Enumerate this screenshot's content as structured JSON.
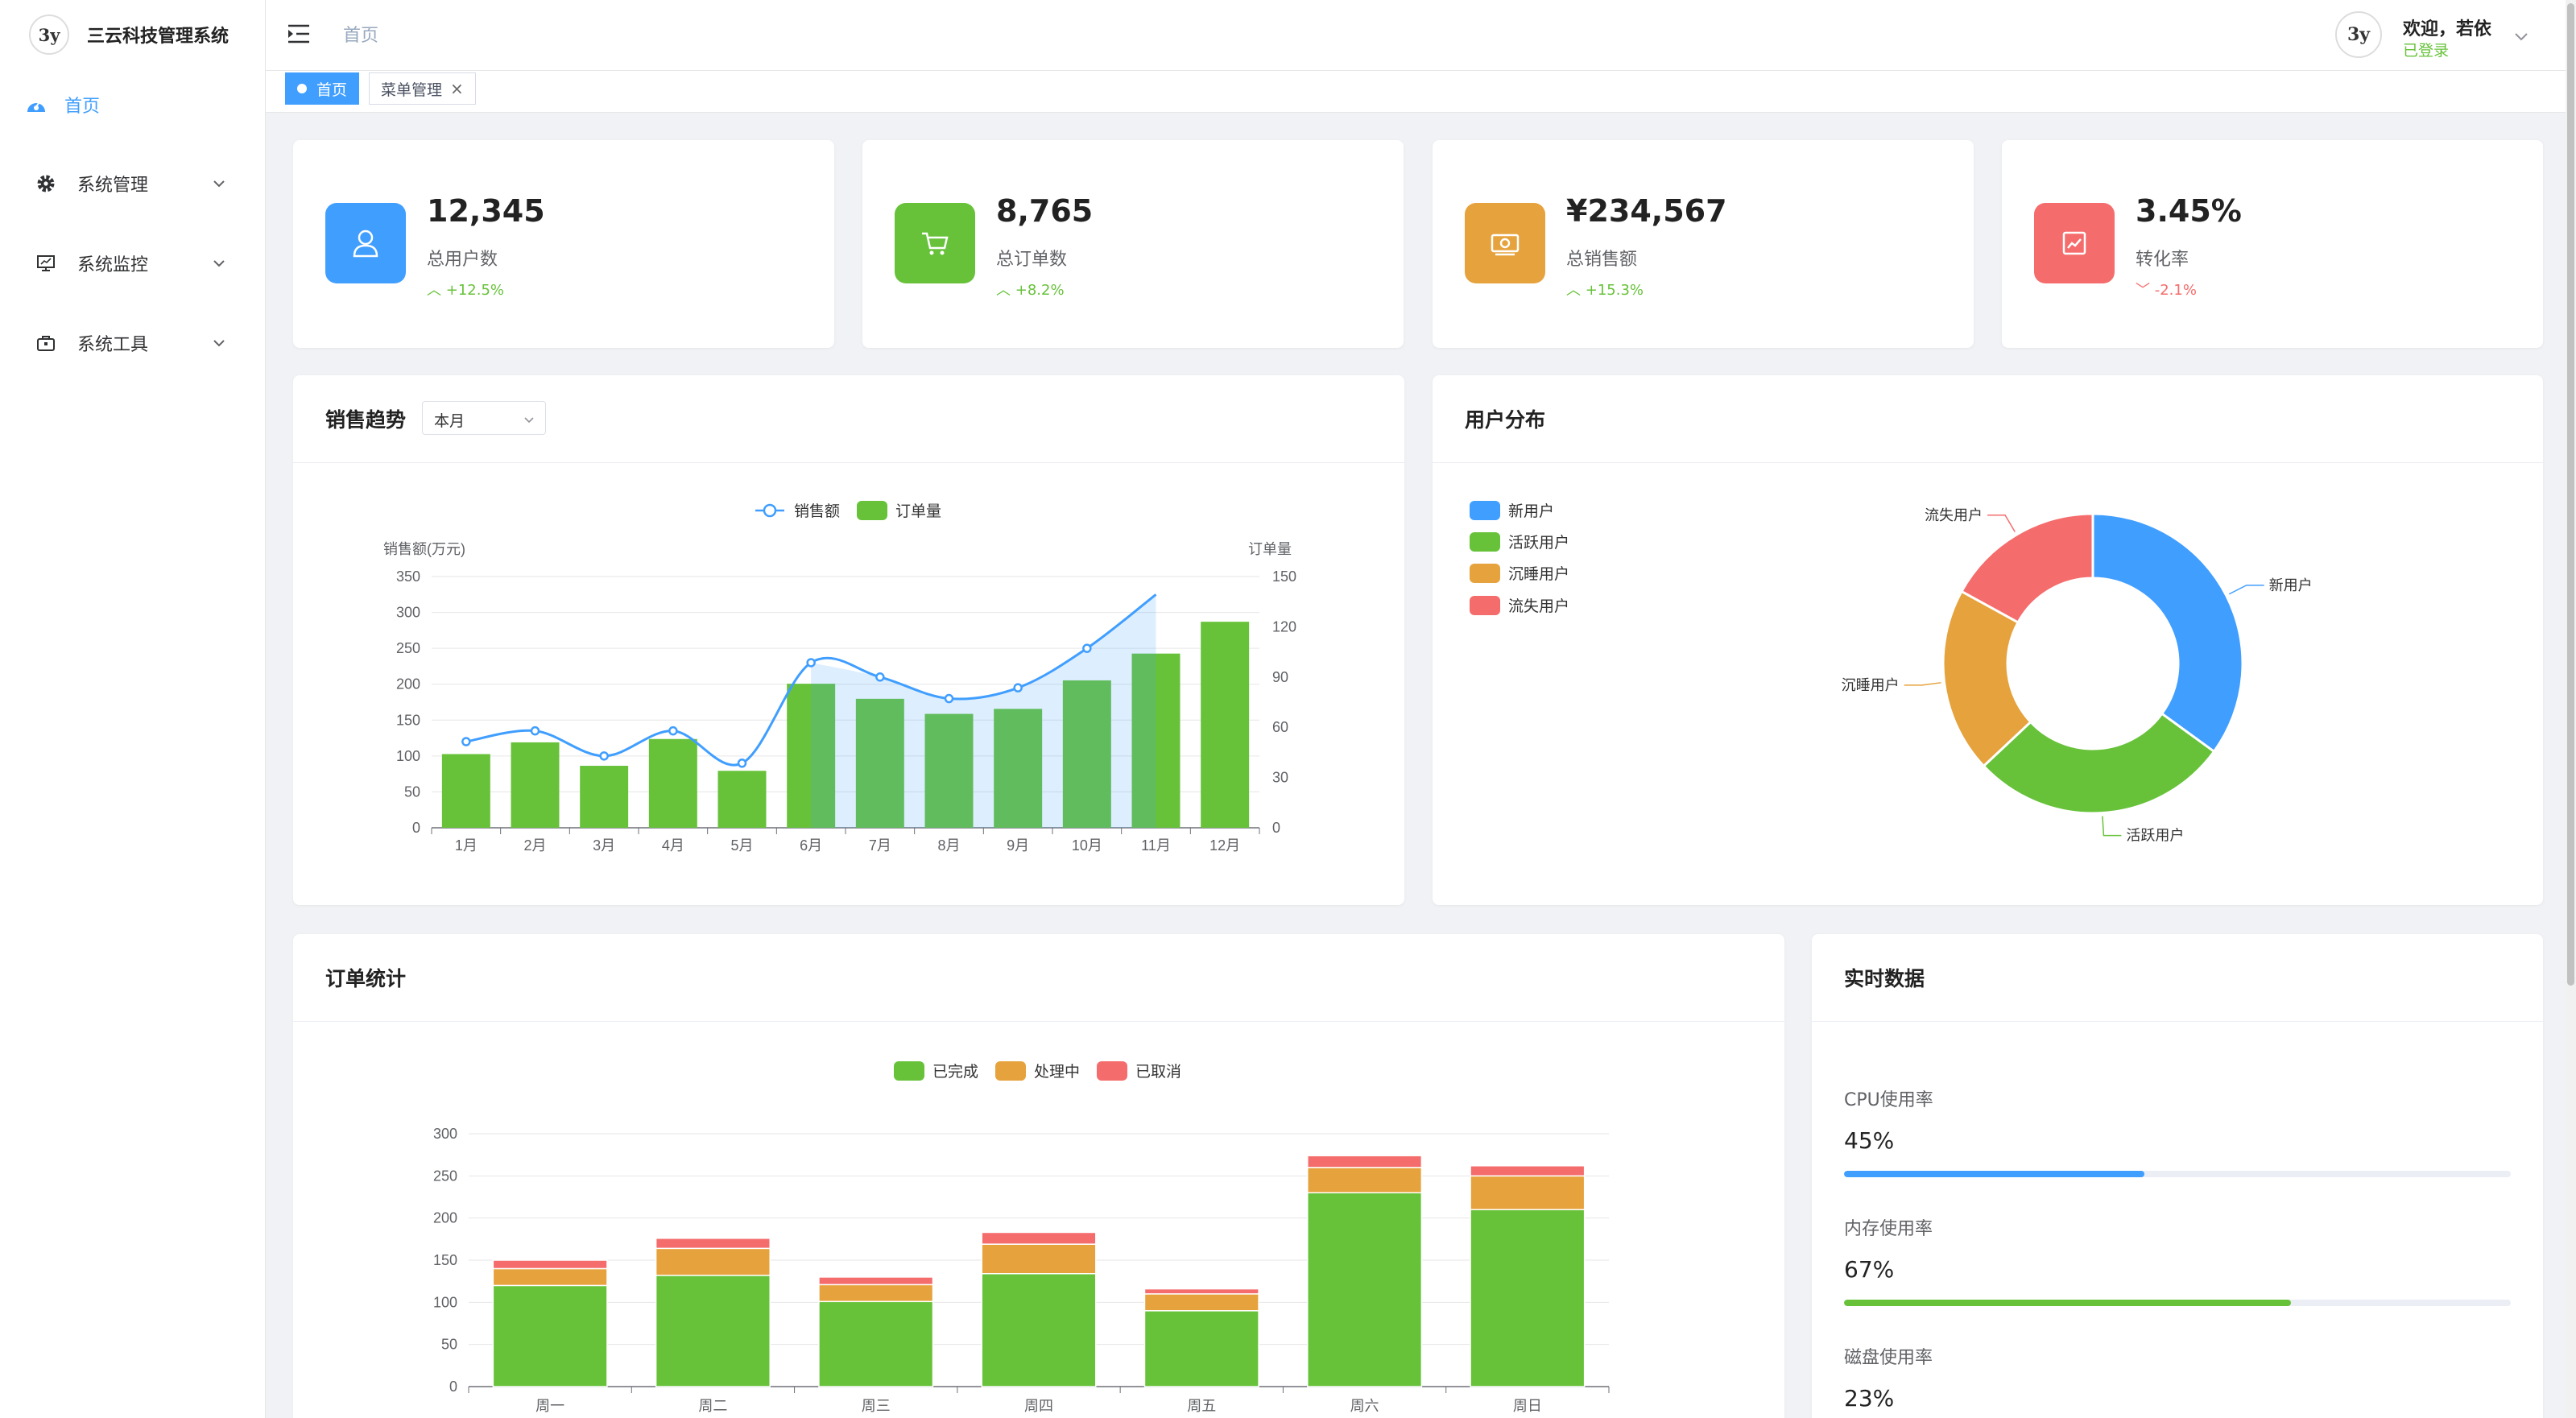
{
  "app": {
    "logo_text": "3y",
    "title": "三云科技管理系统"
  },
  "sidebar": {
    "items": [
      {
        "label": "首页",
        "icon": "dashboard-icon",
        "active": true
      },
      {
        "label": "系统管理",
        "icon": "gear-icon",
        "expandable": true
      },
      {
        "label": "系统监控",
        "icon": "monitor-icon",
        "expandable": true
      },
      {
        "label": "系统工具",
        "icon": "toolbox-icon",
        "expandable": true
      }
    ]
  },
  "header": {
    "breadcrumb": "首页",
    "user": {
      "avatar_text": "3y",
      "welcome": "欢迎，若依",
      "status": "已登录"
    }
  },
  "tabs": [
    {
      "label": "首页",
      "active": true
    },
    {
      "label": "菜单管理",
      "closable": true
    }
  ],
  "stats": [
    {
      "value": "12,345",
      "label": "总用户数",
      "trend": "+12.5%",
      "direction": "up",
      "icon": "user-icon",
      "color": "#409eff"
    },
    {
      "value": "8,765",
      "label": "总订单数",
      "trend": "+8.2%",
      "direction": "up",
      "icon": "cart-icon",
      "color": "#67c23a"
    },
    {
      "value": "¥234,567",
      "label": "总销售额",
      "trend": "+15.3%",
      "direction": "up",
      "icon": "money-icon",
      "color": "#e6a23c"
    },
    {
      "value": "3.45%",
      "label": "转化率",
      "trend": "-2.1%",
      "direction": "down",
      "icon": "trend-chart-icon",
      "color": "#f56c6c"
    }
  ],
  "sales_card": {
    "title": "销售趋势",
    "period_select": "本月"
  },
  "users_card": {
    "title": "用户分布"
  },
  "orders_card": {
    "title": "订单统计"
  },
  "realtime": {
    "title": "实时数据",
    "metrics": [
      {
        "label": "CPU使用率",
        "value": "45%",
        "percent": 45,
        "color": "#409eff"
      },
      {
        "label": "内存使用率",
        "value": "67%",
        "percent": 67,
        "color": "#67c23a"
      },
      {
        "label": "磁盘使用率",
        "value": "23%",
        "percent": 23,
        "color": "#e6a23c"
      }
    ]
  },
  "colors": {
    "primary": "#409eff",
    "success": "#67c23a",
    "warning": "#e6a23c",
    "danger": "#f56c6c"
  },
  "chart_data": [
    {
      "type": "bar+line",
      "categories": [
        "1月",
        "2月",
        "3月",
        "4月",
        "5月",
        "6月",
        "7月",
        "8月",
        "9月",
        "10月",
        "11月",
        "12月"
      ],
      "series": [
        {
          "name": "销售额",
          "type": "line",
          "axis": "left",
          "smooth": true,
          "area_last_points": true,
          "color": "#409eff",
          "values": [
            120,
            135,
            100,
            135,
            90,
            230,
            210,
            180,
            195,
            250,
            325,
            null
          ]
        },
        {
          "name": "订单量",
          "type": "bar",
          "axis": "right",
          "color": "#67c23a",
          "values": [
            44,
            51,
            37,
            53,
            34,
            86,
            77,
            68,
            71,
            88,
            104,
            123
          ]
        }
      ],
      "ylabel_left": "销售额(万元)",
      "ylabel_right": "订单量",
      "ylim_left": [
        0,
        350
      ],
      "yticks_left": [
        0,
        50,
        100,
        150,
        200,
        250,
        300,
        350
      ],
      "ylim_right": [
        0,
        150
      ],
      "yticks_right": [
        0,
        30,
        60,
        90,
        120,
        150
      ],
      "legend": "top-center",
      "grid": true
    },
    {
      "type": "pie",
      "donut": true,
      "labels": [
        "新用户",
        "活跃用户",
        "沉睡用户",
        "流失用户"
      ],
      "values": [
        35,
        28,
        20,
        17
      ],
      "colors": [
        "#409eff",
        "#67c23a",
        "#e6a23c",
        "#f56c6c"
      ],
      "legend": "top-left"
    },
    {
      "type": "bar",
      "stacked": true,
      "categories": [
        "周一",
        "周二",
        "周三",
        "周四",
        "周五",
        "周六",
        "周日"
      ],
      "series": [
        {
          "name": "已完成",
          "color": "#67c23a",
          "values": [
            120,
            132,
            101,
            134,
            90,
            230,
            210
          ]
        },
        {
          "name": "处理中",
          "color": "#e6a23c",
          "values": [
            20,
            32,
            20,
            35,
            20,
            30,
            40
          ]
        },
        {
          "name": "已取消",
          "color": "#f56c6c",
          "values": [
            10,
            12,
            9,
            14,
            6,
            14,
            12
          ]
        }
      ],
      "ylim": [
        0,
        300
      ],
      "yticks": [
        0,
        50,
        100,
        150,
        200,
        250,
        300
      ],
      "legend": "top-center",
      "grid": true
    }
  ]
}
